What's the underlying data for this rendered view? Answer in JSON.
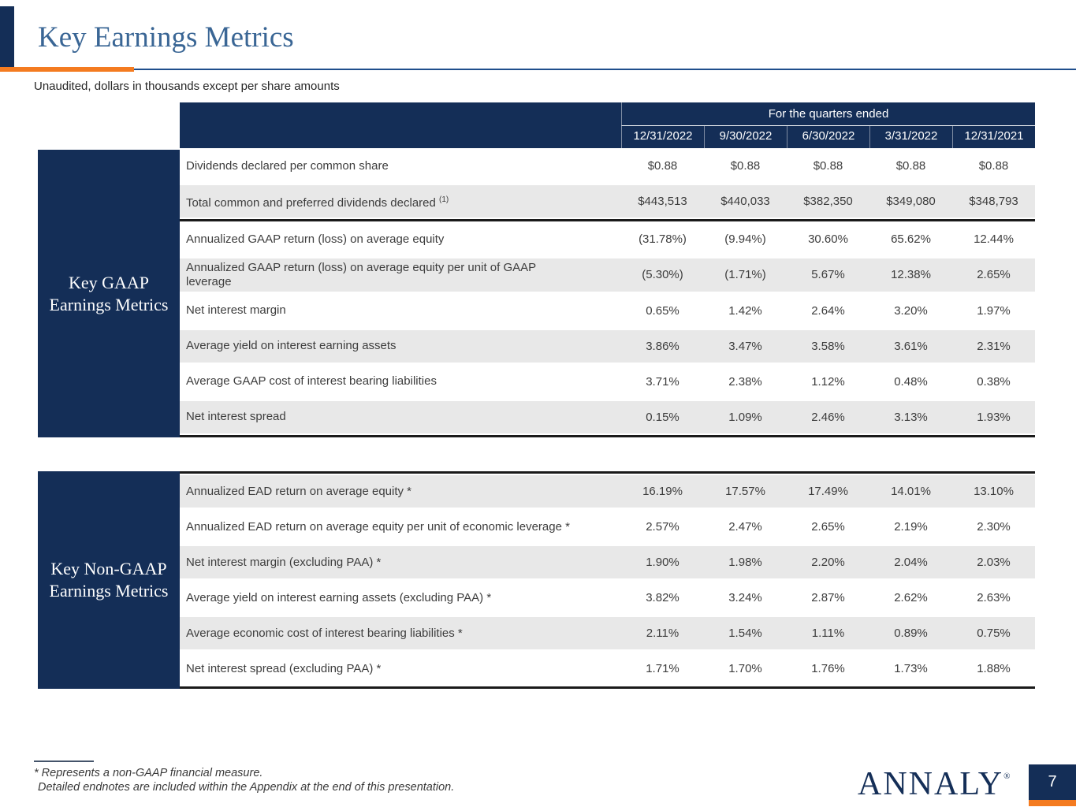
{
  "colors": {
    "navy": "#142e57",
    "orange": "#f47b20",
    "title_blue": "#3a6695",
    "rule_blue": "#1f4e8c",
    "row_shade": "#e8e8e8",
    "text_dark": "#3d3d3d"
  },
  "header": {
    "title": "Key Earnings Metrics",
    "subtitle": "Unaudited, dollars in thousands except per share amounts"
  },
  "table": {
    "quarters_header": "For the quarters ended",
    "columns": [
      "12/31/2022",
      "9/30/2022",
      "6/30/2022",
      "3/31/2022",
      "12/31/2021"
    ],
    "sections": [
      {
        "label": "Key GAAP\nEarnings Metrics",
        "rows": [
          {
            "metric": "Dividends declared per common share",
            "sup": "",
            "values": [
              "$0.88",
              "$0.88",
              "$0.88",
              "$0.88",
              "$0.88"
            ],
            "shaded": false,
            "divider_after": false
          },
          {
            "metric": "Total common and preferred dividends declared",
            "sup": "(1)",
            "values": [
              "$443,513",
              "$440,033",
              "$382,350",
              "$349,080",
              "$348,793"
            ],
            "shaded": true,
            "divider_after": true
          },
          {
            "metric": "Annualized GAAP return (loss) on average equity",
            "sup": "",
            "values": [
              "(31.78%)",
              "(9.94%)",
              "30.60%",
              "65.62%",
              "12.44%"
            ],
            "shaded": false,
            "divider_after": false
          },
          {
            "metric": "Annualized GAAP return (loss) on average equity per unit of GAAP\nleverage",
            "sup": "",
            "values": [
              "(5.30%)",
              "(1.71%)",
              "5.67%",
              "12.38%",
              "2.65%"
            ],
            "shaded": true,
            "divider_after": false
          },
          {
            "metric": "Net interest margin",
            "sup": "",
            "values": [
              "0.65%",
              "1.42%",
              "2.64%",
              "3.20%",
              "1.97%"
            ],
            "shaded": false,
            "divider_after": false
          },
          {
            "metric": "Average yield on interest earning assets",
            "sup": "",
            "values": [
              "3.86%",
              "3.47%",
              "3.58%",
              "3.61%",
              "2.31%"
            ],
            "shaded": true,
            "divider_after": false
          },
          {
            "metric": "Average GAAP cost of interest bearing liabilities",
            "sup": "",
            "values": [
              "3.71%",
              "2.38%",
              "1.12%",
              "0.48%",
              "0.38%"
            ],
            "shaded": false,
            "divider_after": false
          },
          {
            "metric": "Net interest spread",
            "sup": "",
            "values": [
              "0.15%",
              "1.09%",
              "2.46%",
              "3.13%",
              "1.93%"
            ],
            "shaded": true,
            "divider_after": false
          }
        ]
      },
      {
        "label": "Key Non-GAAP\nEarnings Metrics",
        "rows": [
          {
            "metric": "Annualized EAD return on average equity *",
            "sup": "",
            "values": [
              "16.19%",
              "17.57%",
              "17.49%",
              "14.01%",
              "13.10%"
            ],
            "shaded": true,
            "divider_after": false
          },
          {
            "metric": "Annualized EAD return on average equity per unit of economic leverage *",
            "sup": "",
            "values": [
              "2.57%",
              "2.47%",
              "2.65%",
              "2.19%",
              "2.30%"
            ],
            "shaded": false,
            "divider_after": false
          },
          {
            "metric": "Net interest margin (excluding PAA) *",
            "sup": "",
            "values": [
              "1.90%",
              "1.98%",
              "2.20%",
              "2.04%",
              "2.03%"
            ],
            "shaded": true,
            "divider_after": false
          },
          {
            "metric": "Average yield on interest earning assets (excluding PAA) *",
            "sup": "",
            "values": [
              "3.82%",
              "3.24%",
              "2.87%",
              "2.62%",
              "2.63%"
            ],
            "shaded": false,
            "divider_after": false
          },
          {
            "metric": "Average economic cost of interest bearing liabilities *",
            "sup": "",
            "values": [
              "2.11%",
              "1.54%",
              "1.11%",
              "0.89%",
              "0.75%"
            ],
            "shaded": true,
            "divider_after": false
          },
          {
            "metric": "Net interest spread (excluding PAA) *",
            "sup": "",
            "values": [
              "1.71%",
              "1.70%",
              "1.76%",
              "1.73%",
              "1.88%"
            ],
            "shaded": false,
            "divider_after": false
          }
        ]
      }
    ]
  },
  "footnotes": {
    "lines": [
      "* Represents a non-GAAP financial measure.",
      "Detailed endnotes are included within the Appendix at the end of this presentation."
    ]
  },
  "footer": {
    "logo_text": "ANNALY",
    "logo_mark": "®",
    "page_number": "7"
  }
}
